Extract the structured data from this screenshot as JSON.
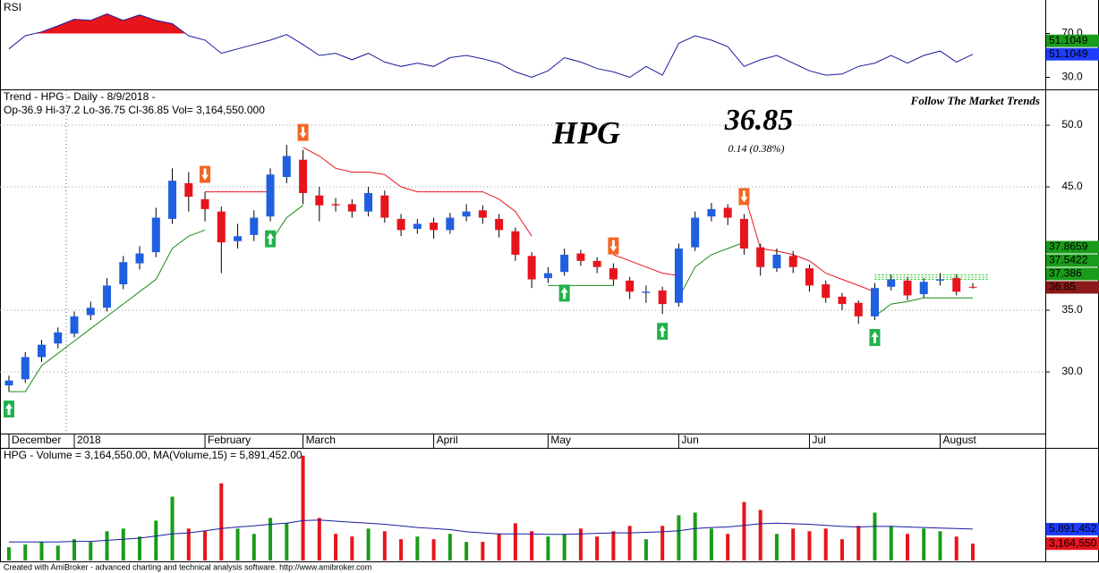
{
  "chart_data": [
    {
      "type": "line",
      "title": "RSI",
      "color": "#1a1aa0",
      "overbought_color": "#e8141c",
      "oversold_color": "#1a9c1a",
      "values": [
        56,
        68,
        71.5,
        77,
        83,
        82,
        88,
        82,
        87,
        82,
        79,
        68,
        64,
        52,
        56,
        60,
        64,
        69,
        60,
        50,
        52,
        46,
        52,
        44,
        40,
        43,
        40,
        48,
        50,
        47,
        43,
        35,
        30,
        36,
        48,
        44,
        38,
        35,
        30,
        40,
        32,
        61,
        68,
        64,
        58,
        40,
        46,
        50,
        43,
        36,
        32,
        33,
        40,
        43,
        50,
        43,
        50,
        54,
        44,
        51.1049
      ],
      "ylim": [
        19.8,
        99
      ],
      "yticks": [
        {
          "value": 30,
          "label": "30.0"
        },
        {
          "value": 70,
          "label": "70.0"
        }
      ],
      "axis_markers": [
        {
          "value": 51.1049,
          "color": "#1a9c1a"
        },
        {
          "value": 51.1049,
          "color": "#1e3cff"
        }
      ]
    },
    {
      "type": "candlestick",
      "title": "Trend - HPG - Daily  -  8/9/2018 -",
      "subtitle": "Op-36.9  Hi-37.2  Lo-36.75  Cl-36.85  Vol= 3,164,550.000",
      "symbol": "HPG",
      "last_price": 36.85,
      "change_label": "0.14  (0.38%)",
      "annotation": "Follow The Market Trends",
      "categories": [
        "December",
        null,
        null,
        null,
        "2018",
        null,
        null,
        null,
        null,
        null,
        null,
        null,
        "February",
        null,
        null,
        null,
        null,
        null,
        "March",
        null,
        null,
        null,
        null,
        null,
        null,
        null,
        "April",
        null,
        null,
        null,
        null,
        null,
        null,
        "May",
        null,
        null,
        null,
        null,
        null,
        null,
        null,
        "Jun",
        null,
        null,
        null,
        null,
        null,
        null,
        null,
        "Jul",
        null,
        null,
        null,
        null,
        null,
        null,
        null,
        "August",
        null,
        null
      ],
      "open": [
        28.9,
        29.4,
        31.2,
        32.3,
        33.1,
        34.6,
        35.2,
        37.1,
        38.8,
        39.7,
        42.4,
        45.3,
        44.0,
        43.0,
        40.6,
        41.1,
        42.6,
        45.8,
        47.2,
        44.3,
        43.6,
        43.6,
        43.0,
        44.3,
        42.4,
        41.6,
        42.1,
        41.5,
        42.6,
        43.1,
        42.4,
        41.4,
        39.4,
        37.6,
        38.1,
        39.6,
        39.0,
        38.4,
        37.4,
        36.4,
        36.6,
        35.6,
        40.1,
        42.6,
        43.3,
        42.4,
        40.1,
        38.4,
        39.4,
        38.4,
        37.1,
        36.1,
        35.6,
        34.5,
        36.9,
        37.4,
        36.3,
        37.4,
        37.6,
        36.9
      ],
      "high": [
        29.7,
        31.6,
        32.6,
        33.6,
        34.9,
        35.7,
        37.6,
        39.4,
        40.2,
        43.3,
        46.5,
        46.2,
        44.6,
        43.4,
        42.0,
        43.1,
        46.5,
        48.4,
        48.0,
        45.0,
        44.1,
        44.0,
        45.0,
        44.7,
        42.8,
        42.4,
        42.5,
        42.9,
        43.6,
        43.5,
        42.8,
        41.7,
        39.7,
        38.5,
        40.0,
        39.9,
        39.3,
        38.8,
        37.7,
        37.0,
        36.9,
        40.4,
        43.0,
        43.7,
        43.6,
        42.8,
        40.4,
        40.0,
        39.8,
        38.7,
        37.4,
        36.4,
        35.8,
        37.2,
        37.9,
        37.7,
        37.6,
        38.0,
        37.9,
        37.2
      ],
      "low": [
        28.4,
        29.1,
        30.8,
        31.9,
        32.8,
        34.2,
        34.9,
        36.7,
        38.3,
        39.3,
        42.0,
        43.0,
        42.2,
        38.0,
        40.0,
        40.6,
        42.2,
        45.3,
        43.6,
        42.2,
        43.0,
        42.5,
        42.6,
        42.1,
        41.0,
        41.2,
        40.8,
        41.2,
        42.2,
        42.0,
        40.9,
        39.0,
        36.8,
        37.2,
        37.8,
        38.6,
        38.0,
        37.0,
        35.9,
        35.6,
        34.7,
        35.3,
        39.8,
        42.2,
        41.9,
        39.5,
        37.8,
        38.1,
        38.0,
        36.5,
        35.6,
        35.0,
        33.9,
        34.2,
        36.6,
        35.8,
        36.0,
        37.0,
        36.2,
        36.75
      ],
      "close": [
        29.3,
        31.2,
        32.2,
        33.2,
        34.5,
        35.2,
        37.0,
        38.9,
        39.6,
        42.5,
        45.5,
        44.2,
        43.2,
        40.5,
        41.0,
        42.5,
        46.0,
        47.5,
        44.5,
        43.5,
        43.5,
        43.0,
        44.5,
        42.5,
        41.5,
        42.0,
        41.5,
        42.5,
        43.0,
        42.5,
        41.5,
        39.5,
        37.5,
        38.0,
        39.5,
        39.0,
        38.5,
        37.5,
        36.5,
        36.5,
        35.5,
        40.0,
        42.5,
        43.2,
        42.5,
        40.0,
        38.5,
        39.5,
        38.5,
        37.0,
        36.0,
        35.5,
        34.5,
        36.8,
        37.5,
        36.2,
        37.3,
        37.5,
        36.5,
        36.85
      ],
      "up_color": "#1f5fe0",
      "down_color": "#e8141c",
      "stop_up": {
        "color": "#1a8c1a",
        "values": [
          28.4,
          28.4,
          30.5,
          31.5,
          32.5,
          33.5,
          34.5,
          35.5,
          36.5,
          37.5,
          40.0,
          41.0,
          41.5,
          null,
          null,
          null,
          40.5,
          42.5,
          43.5,
          null,
          null,
          null,
          null,
          null,
          null,
          null,
          null,
          null,
          null,
          null,
          null,
          null,
          null,
          37.0,
          37.0,
          37.0,
          37.0,
          37.0,
          null,
          null,
          null,
          36.0,
          38.5,
          39.5,
          40.0,
          40.5,
          null,
          null,
          null,
          null,
          null,
          null,
          null,
          34.5,
          35.5,
          35.7,
          36.0,
          36.0,
          36.0,
          36.0
        ]
      },
      "stop_down": {
        "color": "#e8141c",
        "values": [
          null,
          null,
          null,
          null,
          null,
          null,
          null,
          null,
          null,
          null,
          null,
          null,
          44.6,
          44.6,
          44.6,
          44.6,
          44.6,
          null,
          48.2,
          47.5,
          46.5,
          46.2,
          46.2,
          46.0,
          45.0,
          44.6,
          44.6,
          44.6,
          44.6,
          44.6,
          44.0,
          43.0,
          41.0,
          null,
          null,
          null,
          null,
          39.5,
          39.0,
          38.5,
          38.0,
          37.8,
          null,
          null,
          null,
          44.5,
          40.0,
          39.8,
          39.5,
          39.0,
          38.0,
          37.5,
          37.0,
          36.5,
          null,
          null,
          null,
          null,
          null,
          null
        ]
      },
      "buy_signals": [
        0,
        16,
        34,
        40,
        53
      ],
      "sell_signals": [
        12,
        18,
        37,
        45
      ],
      "ylim": [
        25,
        52.83
      ],
      "yticks": [
        {
          "value": 30,
          "label": "30.0"
        },
        {
          "value": 35,
          "label": "35.0"
        },
        {
          "value": 45,
          "label": "45.0"
        },
        {
          "value": 50,
          "label": "50.0"
        }
      ],
      "grid": true,
      "axis_markers": [
        {
          "value": 37.8659,
          "color": "#1a9c1a"
        },
        {
          "value": 37.5422,
          "color": "#1a9c1a"
        },
        {
          "value": 37.386,
          "color": "#1a9c1a"
        },
        {
          "value": 36.85,
          "color": "#8b1a1a"
        }
      ]
    },
    {
      "type": "bar",
      "header": [
        {
          "text": "HPG - ",
          "color": "#000000"
        },
        {
          "text": "Volume = 3,164,550.00",
          "color": "#e8141c"
        },
        {
          "text": ", MA(Volume,15) = 5,891,452.00",
          "color": "#1a1aa0"
        }
      ],
      "values": [
        2500000,
        3000000,
        3500000,
        2800000,
        4000000,
        3500000,
        5500000,
        6000000,
        4500000,
        7500000,
        12000000,
        6000000,
        5500000,
        14500000,
        6000000,
        5000000,
        8000000,
        7000000,
        19700000,
        8000000,
        5000000,
        4500000,
        6000000,
        5500000,
        4000000,
        4500000,
        4000000,
        5000000,
        3500000,
        3500000,
        5000000,
        7000000,
        5500000,
        4500000,
        5000000,
        6000000,
        4500000,
        5500000,
        6500000,
        4000000,
        6500000,
        8500000,
        9000000,
        6000000,
        5000000,
        11000000,
        9500000,
        5000000,
        6000000,
        5500000,
        6000000,
        4000000,
        6500000,
        9000000,
        6500000,
        5000000,
        6000000,
        5500000,
        4500000,
        3164550
      ],
      "ma_values": [
        3500000,
        3500000,
        3500000,
        3500000,
        3600000,
        3600000,
        3800000,
        4000000,
        4200000,
        4600000,
        5000000,
        5200000,
        5600000,
        6000000,
        6300000,
        6500000,
        6800000,
        7000000,
        7500000,
        7600000,
        7400000,
        7200000,
        7000000,
        6800000,
        6500000,
        6200000,
        6000000,
        5800000,
        5400000,
        5200000,
        5000000,
        5000000,
        5000000,
        4900000,
        4900000,
        5000000,
        5100000,
        5200000,
        5200000,
        5300000,
        5400000,
        5600000,
        6000000,
        6200000,
        6300000,
        6600000,
        6900000,
        7000000,
        6900000,
        6800000,
        6600000,
        6400000,
        6300000,
        6400000,
        6400000,
        6300000,
        6200000,
        6100000,
        6000000,
        5891452
      ],
      "ma_color": "#1a1aa0",
      "up_color": "#1a9c1a",
      "down_color": "#e8141c",
      "ylim": [
        0,
        20500000
      ],
      "axis_markers": [
        {
          "value": 5891452,
          "label": "5,891,452",
          "color": "#1e3cff"
        },
        {
          "value": 3164550,
          "label": "3,164,550",
          "color": "#e8141c"
        }
      ]
    }
  ],
  "footer": "Created with AmiBroker - advanced charting and technical analysis software. http://www.amibroker.com"
}
